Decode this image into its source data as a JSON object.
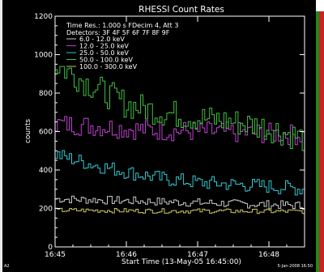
{
  "chart_data": {
    "type": "line",
    "title": "RHESSI Count Rates",
    "xlabel": "Start Time (13-May-05 16:45:00)",
    "ylabel": "counts",
    "xlim": [
      "16:45:00",
      "16:48:30"
    ],
    "ylim": [
      0,
      1200
    ],
    "x_ticks": [
      "16:45",
      "16:46",
      "16:47",
      "16:48"
    ],
    "y_ticks": [
      0,
      200,
      400,
      600,
      800,
      1000,
      1200
    ],
    "grid": false,
    "legend_position": "top-left",
    "info_lines": [
      "Time Res.: 1.000 s    FDecim 4, Att 3",
      "Detectors: 3F 4F 5F 6F 7F 8F 9F"
    ],
    "footer_right": "5-Jan-2008 16:50",
    "footer_left": "A2",
    "series": [
      {
        "name": "6.0  -  12.0 keV",
        "color": "#c8c8c8",
        "x": [
          "16:45:00",
          "16:45:30",
          "16:46:00",
          "16:46:30",
          "16:47:00",
          "16:47:30",
          "16:48:00",
          "16:48:30"
        ],
        "values": [
          250,
          245,
          240,
          235,
          230,
          225,
          220,
          215
        ]
      },
      {
        "name": "12.0  -  25.0 keV",
        "color": "#c040d0",
        "x": [
          "16:45:00",
          "16:45:30",
          "16:46:00",
          "16:46:30",
          "16:47:00",
          "16:47:30",
          "16:48:00",
          "16:48:30"
        ],
        "values": [
          640,
          630,
          615,
          605,
          600,
          595,
          590,
          580
        ]
      },
      {
        "name": "25.0  -  50.0 keV",
        "color": "#30c8d0",
        "x": [
          "16:45:00",
          "16:45:30",
          "16:46:00",
          "16:46:30",
          "16:47:00",
          "16:47:30",
          "16:48:00",
          "16:48:30"
        ],
        "values": [
          480,
          430,
          390,
          355,
          335,
          325,
          315,
          300
        ]
      },
      {
        "name": "50.0  -  100.0 keV",
        "color": "#40c040",
        "x": [
          "16:45:00",
          "16:45:30",
          "16:46:00",
          "16:46:30",
          "16:47:00",
          "16:47:30",
          "16:48:00",
          "16:48:30"
        ],
        "values": [
          950,
          840,
          740,
          700,
          670,
          650,
          620,
          560
        ]
      },
      {
        "name": "100.0  -  300.0 keV",
        "color": "#c8c860",
        "x": [
          "16:45:00",
          "16:45:30",
          "16:46:00",
          "16:46:30",
          "16:47:00",
          "16:47:30",
          "16:48:00",
          "16:48:30"
        ],
        "values": [
          190,
          190,
          188,
          187,
          187,
          186,
          185,
          185
        ]
      }
    ]
  }
}
